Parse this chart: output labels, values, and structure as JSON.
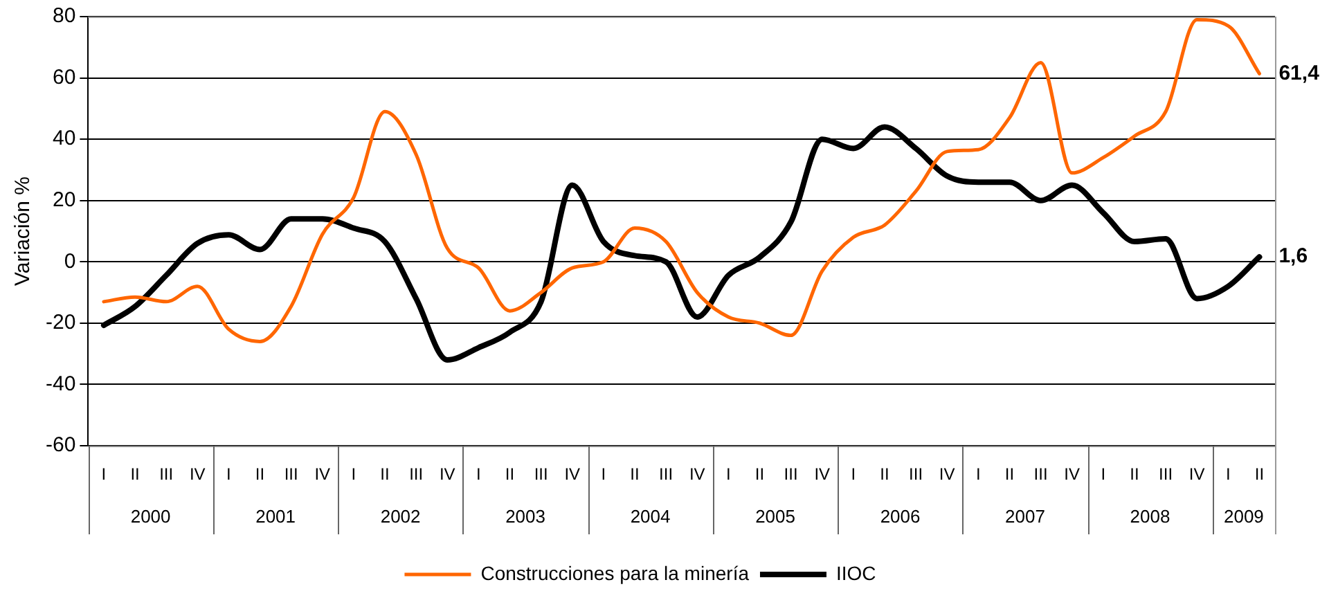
{
  "chart_data": {
    "type": "line",
    "ylabel": "Variación %",
    "categories": [
      "I",
      "II",
      "III",
      "IV",
      "I",
      "II",
      "III",
      "IV",
      "I",
      "II",
      "III",
      "IV",
      "I",
      "II",
      "III",
      "IV",
      "I",
      "II",
      "III",
      "IV",
      "I",
      "II",
      "III",
      "IV",
      "I",
      "II",
      "III",
      "IV",
      "I",
      "II",
      "III",
      "IV",
      "I",
      "II",
      "III",
      "IV",
      "I",
      "II"
    ],
    "series": [
      {
        "name": "Construcciones para la minería",
        "color": "#ff6600",
        "values": [
          -13,
          -11.5,
          -13,
          -8,
          -22,
          -26,
          -14.5,
          9,
          21,
          49,
          35,
          4.4,
          -2,
          -16,
          -10,
          -2,
          0,
          11,
          6.6,
          -10,
          -18,
          -20,
          -24,
          -3,
          8,
          12,
          23,
          36,
          36.6,
          47,
          65,
          29,
          34,
          41,
          49,
          79,
          77,
          61.4
        ],
        "value_labels": [
          null,
          null,
          null,
          null,
          null,
          null,
          null,
          null,
          null,
          null,
          null,
          null,
          null,
          null,
          null,
          null,
          null,
          null,
          null,
          null,
          null,
          null,
          null,
          null,
          null,
          null,
          null,
          null,
          null,
          null,
          null,
          null,
          null,
          null,
          null,
          null,
          null,
          "61,4"
        ]
      },
      {
        "name": "IIOC",
        "color": "#000000",
        "values": [
          -20.7,
          -14.6,
          -4.4,
          6,
          8.8,
          4,
          14,
          14,
          11,
          6.6,
          -12,
          -32,
          -28,
          -23,
          -13,
          25,
          6.6,
          2,
          0,
          -18,
          -4.4,
          1.5,
          13,
          40,
          37,
          44,
          37,
          28,
          26,
          26,
          20,
          25,
          16,
          6.6,
          7.5,
          -12,
          -8,
          1.6
        ],
        "value_labels": [
          null,
          null,
          null,
          null,
          null,
          null,
          null,
          null,
          null,
          null,
          null,
          null,
          null,
          null,
          null,
          null,
          null,
          null,
          null,
          null,
          null,
          null,
          null,
          null,
          null,
          null,
          null,
          null,
          null,
          null,
          null,
          null,
          null,
          null,
          null,
          null,
          null,
          "1,6"
        ]
      }
    ],
    "annotations": [
      "2000",
      "2001",
      "2002",
      "2003",
      "2004",
      "2005",
      "2006",
      "2007",
      "2008",
      "2009"
    ],
    "ylim": [
      -60,
      80
    ],
    "yticks": [
      -60,
      -40,
      -20,
      0,
      20,
      40,
      60,
      80
    ],
    "grid": "y",
    "legend": "bottom",
    "marker": "none",
    "line_style": "solid"
  }
}
